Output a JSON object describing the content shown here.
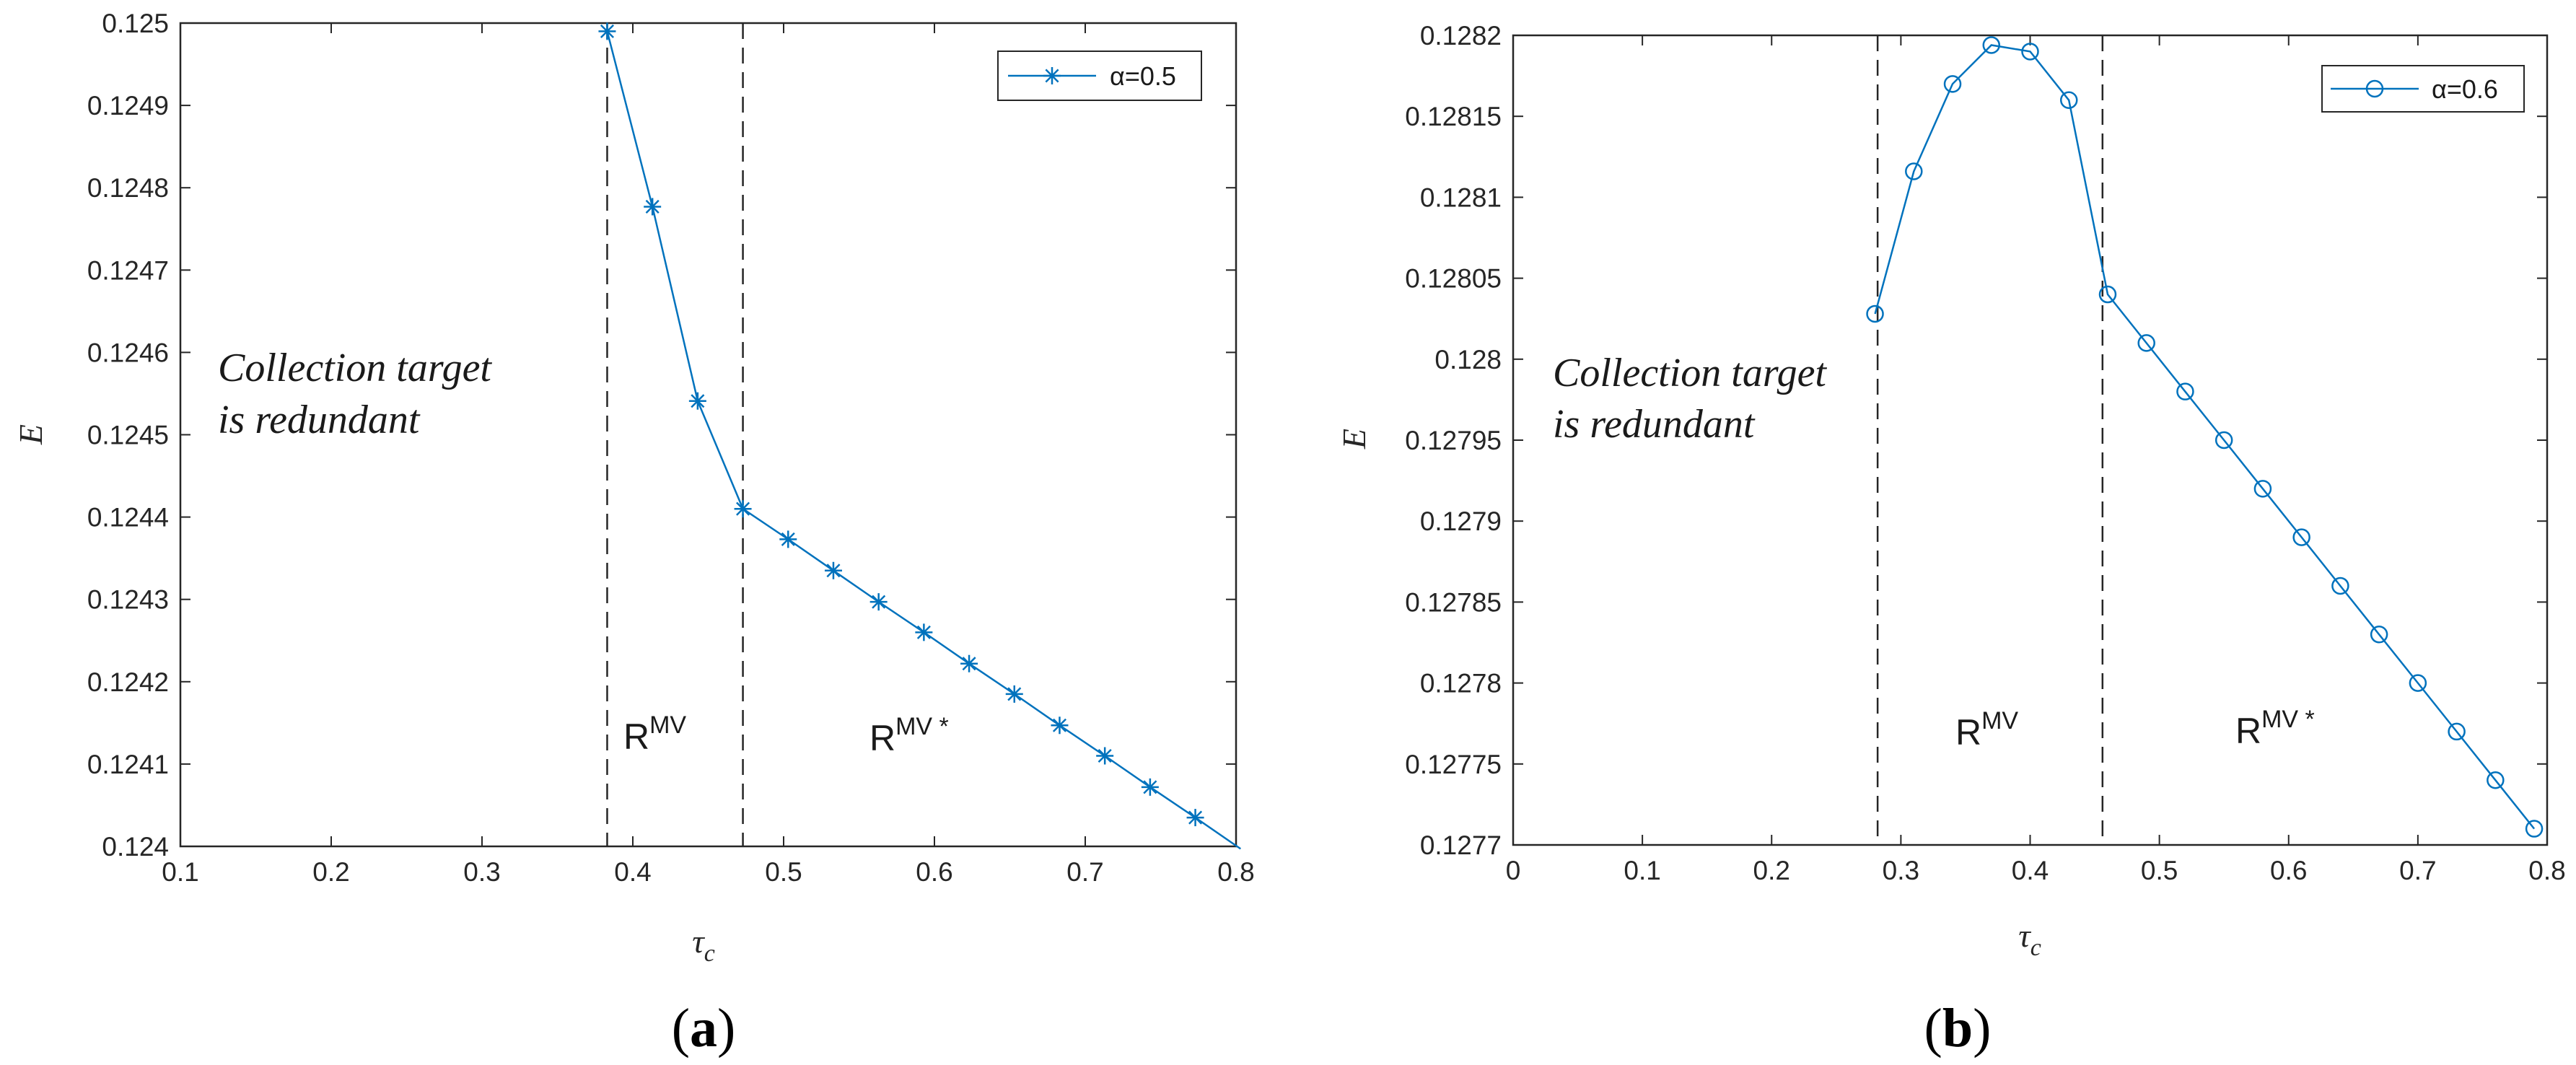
{
  "chart_data": [
    {
      "type": "line",
      "panel_label": "a",
      "xlabel": "τ",
      "xlabel_sub": "c",
      "ylabel": "E",
      "xlim": [
        0.1,
        0.8
      ],
      "ylim": [
        0.124,
        0.125
      ],
      "xticks": [
        "0.1",
        "0.2",
        "0.3",
        "0.4",
        "0.5",
        "0.6",
        "0.7",
        "0.8"
      ],
      "yticks": [
        "0.124",
        "0.1241",
        "0.1242",
        "0.1243",
        "0.1244",
        "0.1245",
        "0.1246",
        "0.1247",
        "0.1248",
        "0.1249",
        "0.125"
      ],
      "series": [
        {
          "name": "α=0.5",
          "marker": "asterisk",
          "color": "#0072BD",
          "x": [
            0.383,
            0.413,
            0.443,
            0.473,
            0.503,
            0.533,
            0.563,
            0.593,
            0.623,
            0.653,
            0.683,
            0.713,
            0.743,
            0.773,
            0.803
          ],
          "y": [
            0.12499,
            0.124777,
            0.124541,
            0.12441,
            0.124373,
            0.124335,
            0.124297,
            0.12426,
            0.124222,
            0.124185,
            0.124147,
            0.12411,
            0.124072,
            0.124035,
            0.123997
          ]
        }
      ],
      "vlines": [
        0.383,
        0.473
      ],
      "legend_position": "top-right",
      "annotation": [
        "Collection target",
        "is redundant"
      ],
      "regions": [
        {
          "base": "R",
          "sup": "MV"
        },
        {
          "base": "R",
          "sup": "MV *"
        }
      ]
    },
    {
      "type": "line",
      "panel_label": "b",
      "xlabel": "τ",
      "xlabel_sub": "c",
      "ylabel": "E",
      "xlim": [
        0,
        0.8
      ],
      "ylim": [
        0.1277,
        0.1282
      ],
      "xticks": [
        "0",
        "0.1",
        "0.2",
        "0.3",
        "0.4",
        "0.5",
        "0.6",
        "0.7",
        "0.8"
      ],
      "yticks": [
        "0.1277",
        "0.12775",
        "0.1278",
        "0.12785",
        "0.1279",
        "0.12795",
        "0.128",
        "0.12805",
        "0.1281",
        "0.12815",
        "0.1282"
      ],
      "series": [
        {
          "name": "α=0.6",
          "marker": "circle",
          "color": "#0072BD",
          "x": [
            0.28,
            0.31,
            0.34,
            0.37,
            0.4,
            0.43,
            0.46,
            0.49,
            0.52,
            0.55,
            0.58,
            0.61,
            0.64,
            0.67,
            0.7,
            0.73,
            0.76,
            0.79
          ],
          "y": [
            0.128028,
            0.128116,
            0.12817,
            0.128194,
            0.12819,
            0.12816,
            0.12804,
            0.12801,
            0.12798,
            0.12795,
            0.12792,
            0.12789,
            0.12786,
            0.12783,
            0.1278,
            0.12777,
            0.12774,
            0.12771
          ]
        }
      ],
      "vlines": [
        0.282,
        0.456
      ],
      "legend_position": "top-right",
      "annotation": [
        "Collection target",
        "is redundant"
      ],
      "regions": [
        {
          "base": "R",
          "sup": "MV"
        },
        {
          "base": "R",
          "sup": "MV *"
        }
      ]
    }
  ]
}
